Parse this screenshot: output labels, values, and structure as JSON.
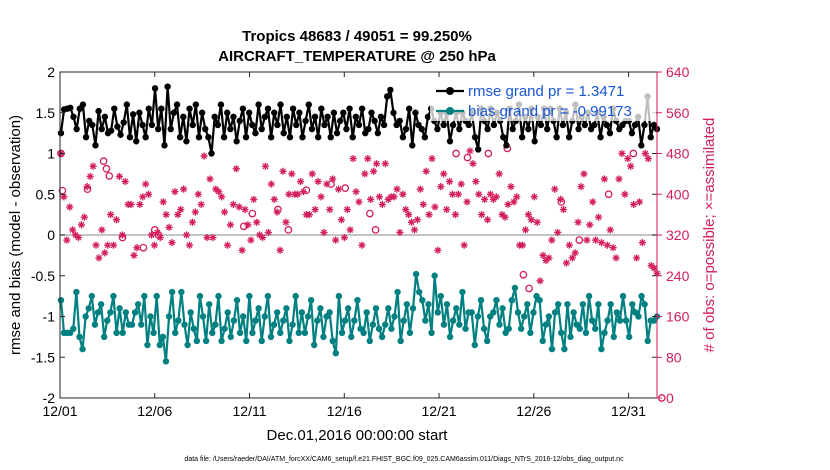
{
  "chart_data": {
    "type": "line",
    "title": [
      "Tropics 48683 / 49051 = 99.250%",
      "AIRCRAFT_TEMPERATURE @ 250 hPa"
    ],
    "xlabel": "Dec.01,2016 00:00:00 start",
    "ylabel": "rmse and bias (model - observation)",
    "y2label": "# of obs: o=possible; ×=assimilated",
    "xlim": [
      0,
      31.5
    ],
    "ylim": [
      -2,
      2
    ],
    "y2lim": [
      0,
      640
    ],
    "xticks": [
      0,
      5,
      10,
      15,
      20,
      25,
      30
    ],
    "xtick_labels": [
      "12/01",
      "12/06",
      "12/11",
      "12/16",
      "12/21",
      "12/26",
      "12/31"
    ],
    "yticks": [
      -2,
      -1.5,
      -1,
      -0.5,
      0,
      0.5,
      1,
      1.5,
      2
    ],
    "ytick_labels": [
      "-2",
      "-1.5",
      "-1",
      "-0.5",
      "0",
      "0.5",
      "1",
      "1.5",
      "2"
    ],
    "y2ticks": [
      0,
      80,
      160,
      240,
      320,
      400,
      480,
      560,
      640
    ],
    "y2tick_labels": [
      "0",
      "80",
      "160",
      "240",
      "320",
      "400",
      "480",
      "560",
      "640"
    ],
    "legend": {
      "placement": "top-right",
      "entries": [
        "rmse grand pr = 1.3471",
        "bias grand pr = -0.99173"
      ]
    },
    "zero_line": 0,
    "colors": {
      "rmse": "#000000",
      "bias": "#008080",
      "obs": "#d31e5c",
      "zero": "#b0b0b0"
    },
    "series": [
      {
        "name": "rmse",
        "color": "#000000",
        "values": [
          1.25,
          1.54,
          1.55,
          1.56,
          1.45,
          1.3,
          1.55,
          1.6,
          1.2,
          1.4,
          1.35,
          1.1,
          1.52,
          1.3,
          1.45,
          1.25,
          1.28,
          1.55,
          1.33,
          1.23,
          1.38,
          1.6,
          1.2,
          1.48,
          1.15,
          1.5,
          1.35,
          1.2,
          1.55,
          1.35,
          1.8,
          1.3,
          1.55,
          1.1,
          1.82,
          1.3,
          1.5,
          1.6,
          1.2,
          1.45,
          1.15,
          1.55,
          1.35,
          1.6,
          1.2,
          1.5,
          1.3,
          1.2,
          1.0,
          1.45,
          1.35,
          1.6,
          1.2,
          1.5,
          1.3,
          1.45,
          1.15,
          1.4,
          1.55,
          1.2,
          1.5,
          1.35,
          1.25,
          1.6,
          1.3,
          1.45,
          1.55,
          1.2,
          1.5,
          1.35,
          1.6,
          1.25,
          1.45,
          1.2,
          1.55,
          1.35,
          1.5,
          1.2,
          1.4,
          1.6,
          1.3,
          1.45,
          1.2,
          1.55,
          1.35,
          1.45,
          1.2,
          1.5,
          1.25,
          1.4,
          1.5,
          1.3,
          1.55,
          1.2,
          1.45,
          1.35,
          1.55,
          1.25,
          1.3,
          1.5,
          1.4,
          1.25,
          1.45,
          1.35,
          1.7,
          1.78,
          1.5,
          1.35,
          1.4,
          1.2,
          1.3,
          1.55,
          1.1,
          1.5,
          1.35,
          1.3,
          1.2,
          1.45,
          1.55,
          1.4,
          1.3,
          1.5,
          1.35,
          1.5,
          1.15,
          1.35,
          1.5,
          1.3,
          1.5,
          1.4,
          1.35,
          1.5,
          1.2,
          1.05,
          1.55,
          1.4,
          1.3,
          1.55,
          1.35,
          1.5,
          1.4,
          1.2,
          1.1,
          1.55,
          1.3,
          1.4,
          1.6,
          1.2,
          1.45,
          1.3,
          1.55,
          1.15,
          1.45,
          1.35,
          1.55,
          1.3,
          1.55,
          1.4,
          1.2,
          1.55,
          1.35,
          1.5,
          1.2,
          1.4,
          1.6,
          1.3,
          1.45,
          1.35,
          1.5,
          1.3,
          1.35,
          1.5,
          1.2,
          1.45,
          1.35,
          1.25,
          1.55,
          1.4,
          1.3,
          1.35,
          1.4,
          1.4,
          1.25,
          1.35,
          1.45,
          1.1,
          1.35,
          1.7,
          1.2,
          1.35,
          1.3
        ]
      },
      {
        "name": "bias",
        "color": "#008080",
        "values": [
          -0.8,
          -1.2,
          -1.2,
          -1.2,
          -1.15,
          -0.7,
          -1.25,
          -1.4,
          -1.0,
          -0.9,
          -0.75,
          -1.1,
          -0.95,
          -0.85,
          -1.25,
          -1.05,
          -0.95,
          -0.75,
          -1.2,
          -0.9,
          -1.2,
          -0.95,
          -1.1,
          -1.1,
          -0.95,
          -0.85,
          -1.1,
          -0.75,
          -1.35,
          -1.0,
          -1.2,
          -0.75,
          -1.35,
          -1.25,
          -1.55,
          -1.0,
          -0.7,
          -1.2,
          -1.05,
          -0.7,
          -1.1,
          -1.35,
          -0.95,
          -1.15,
          -1.3,
          -0.75,
          -1.0,
          -1.3,
          -0.85,
          -1.2,
          -1.1,
          -0.75,
          -1.3,
          -1.15,
          -0.95,
          -1.25,
          -1.05,
          -0.8,
          -1.2,
          -1.0,
          -1.3,
          -0.75,
          -1.2,
          -1.05,
          -0.9,
          -1.3,
          -1.0,
          -0.75,
          -1.25,
          -1.1,
          -0.95,
          -1.2,
          -1.05,
          -0.9,
          -1.3,
          -1.1,
          -0.75,
          -1.2,
          -0.95,
          -1.2,
          -1.0,
          -0.8,
          -1.35,
          -1.05,
          -0.9,
          -1.25,
          -1.0,
          -0.95,
          -1.3,
          -1.45,
          -0.75,
          -1.2,
          -1.05,
          -0.9,
          -1.25,
          -1.05,
          -0.8,
          -1.15,
          -1.2,
          -0.95,
          -1.3,
          -1.1,
          -0.9,
          -1.15,
          -1.25,
          -1.1,
          -0.9,
          -1.15,
          -1.0,
          -0.7,
          -1.3,
          -1.05,
          -0.85,
          -1.2,
          -0.9,
          -0.48,
          -0.7,
          -0.8,
          -1.05,
          -0.85,
          -1.2,
          -0.5,
          -0.95,
          -0.75,
          -1.1,
          -0.85,
          -1.25,
          -1.05,
          -0.9,
          -1.1,
          -0.7,
          -1.15,
          -0.95,
          -0.95,
          -1.35,
          -1.0,
          -0.8,
          -1.15,
          -1.3,
          -1.0,
          -0.95,
          -0.8,
          -1.1,
          -0.9,
          -1.2,
          -1.15,
          -0.8,
          -0.65,
          -0.95,
          -1.15,
          -1.0,
          -0.85,
          -1.2,
          -0.95,
          -0.75,
          -0.8,
          -1.3,
          -1.1,
          -1.0,
          -1.4,
          -0.95,
          -0.85,
          -1.2,
          -1.4,
          -0.85,
          -1.25,
          -0.95,
          -1.1,
          -1.15,
          -0.85,
          -1.2,
          -0.75,
          -1.05,
          -1.15,
          -0.85,
          -1.4,
          -1.2,
          -1.05,
          -0.85,
          -1.25,
          -0.95,
          -1.05,
          -0.75,
          -1.05,
          -1.25,
          -0.85,
          -0.95,
          -1.0,
          -0.75,
          -0.85,
          -1.3,
          -1.05,
          -1.05,
          -1.0
        ]
      },
      {
        "name": "obs_assimilated",
        "axis": "right",
        "marker": "asterisk",
        "color": "#d31e5c",
        "values": [
          480,
          395,
          310,
          375,
          330,
          320,
          315,
          340,
          355,
          415,
          435,
          455,
          300,
          275,
          330,
          285,
          300,
          360,
          300,
          350,
          435,
          320,
          425,
          380,
          380,
          280,
          295,
          380,
          395,
          420,
          400,
          320,
          300,
          325,
          315,
          385,
          360,
          335,
          305,
          405,
          360,
          370,
          410,
          320,
          300,
          345,
          365,
          400,
          380,
          475,
          315,
          430,
          315,
          410,
          405,
          395,
          365,
          300,
          340,
          380,
          450,
          375,
          290,
          370,
          340,
          310,
          390,
          345,
          320,
          315,
          455,
          325,
          420,
          390,
          365,
          290,
          445,
          345,
          400,
          440,
          400,
          400,
          425,
          405,
          360,
          360,
          440,
          370,
          425,
          395,
          325,
          420,
          370,
          430,
          310,
          410,
          350,
          315,
          370,
          330,
          470,
          405,
          385,
          300,
          440,
          470,
          390,
          445,
          460,
          395,
          380,
          460,
          390,
          395,
          395,
          410,
          325,
          400,
          370,
          360,
          345,
          330,
          350,
          410,
          380,
          445,
          360,
          470,
          375,
          290,
          415,
          440,
          370,
          425,
          400,
          360,
          400,
          420,
          300,
          385,
          485,
          460,
          425,
          400,
          360,
          390,
          350,
          400,
          390,
          395,
          440,
          360,
          355,
          380,
          415,
          385,
          395,
          300,
          300,
          330,
          360,
          350,
          395,
          345,
          230,
          280,
          270,
          275,
          310,
          410,
          325,
          390,
          370,
          265,
          300,
          275,
          285,
          345,
          415,
          440,
          310,
          340,
          385,
          310,
          355,
          305,
          430,
          300,
          330,
          295,
          275,
          430,
          480,
          400,
          470,
          455,
          380,
          275,
          385,
          305,
          480,
          470,
          260,
          255,
          245
        ]
      },
      {
        "name": "obs_possible",
        "axis": "right",
        "marker": "circle",
        "color": "#d31e5c",
        "points": [
          [
            0.05,
            480
          ],
          [
            0.13,
            407
          ],
          [
            1.45,
            410
          ],
          [
            2.3,
            465
          ],
          [
            2.45,
            450
          ],
          [
            2.6,
            436
          ],
          [
            3.3,
            315
          ],
          [
            4.4,
            295
          ],
          [
            5.0,
            330
          ],
          [
            5.2,
            320
          ],
          [
            9.7,
            337
          ],
          [
            10.15,
            362
          ],
          [
            11.5,
            370
          ],
          [
            12.05,
            330
          ],
          [
            13.0,
            408
          ],
          [
            14.3,
            420
          ],
          [
            15.05,
            412
          ],
          [
            16.35,
            362
          ],
          [
            16.65,
            330
          ],
          [
            20.9,
            480
          ],
          [
            21.5,
            472
          ],
          [
            22.6,
            480
          ],
          [
            23.6,
            490
          ],
          [
            24.45,
            242
          ],
          [
            24.75,
            215
          ],
          [
            26.45,
            385
          ],
          [
            27.4,
            310
          ],
          [
            28.95,
            400
          ],
          [
            30.25,
            480
          ],
          [
            31.75,
            0
          ]
        ]
      }
    ]
  },
  "footer": "data file: /Users/raeder/DAI/ATM_forcXX/CAM6_setup/f.e21.FHIST_BGC.f09_025.CAM6assim.011/Diags_NTrS_2016-12/obs_diag_output.nc"
}
